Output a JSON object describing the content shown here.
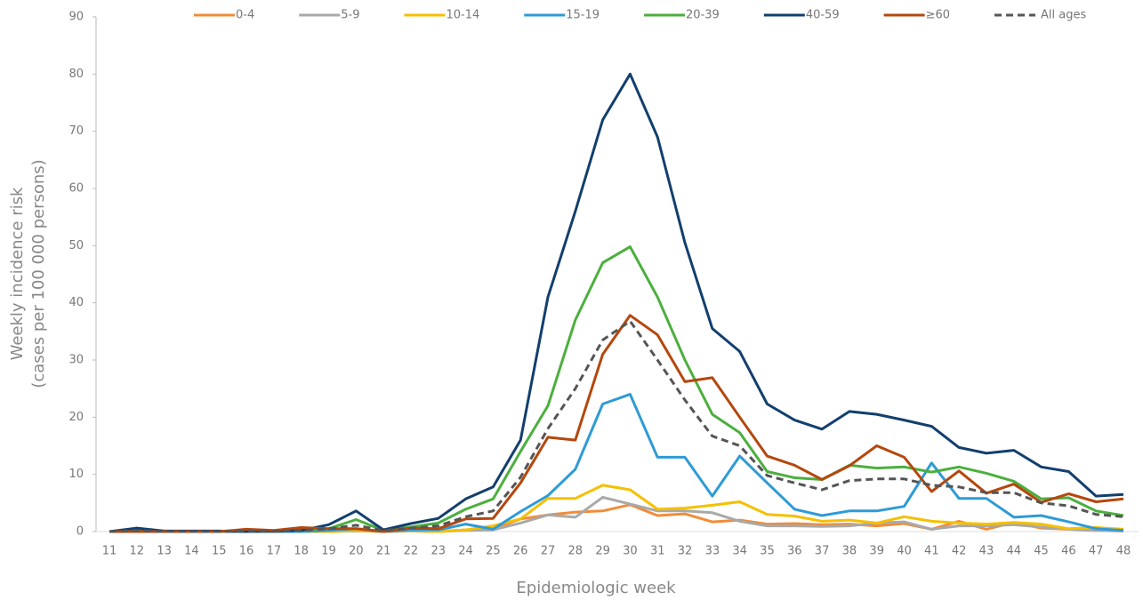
{
  "chart_data": {
    "type": "line",
    "y_title": [
      "Weekly incidence risk",
      "(cases per 100 000 persons)"
    ],
    "x_title": "Epidemiologic week",
    "categories": [
      "11",
      "12",
      "13",
      "14",
      "15",
      "16",
      "17",
      "18",
      "19",
      "20",
      "21",
      "22",
      "23",
      "24",
      "25",
      "26",
      "27",
      "28",
      "29",
      "30",
      "31",
      "32",
      "33",
      "34",
      "35",
      "36",
      "37",
      "38",
      "39",
      "40",
      "41",
      "42",
      "43",
      "44",
      "45",
      "46",
      "47",
      "48"
    ],
    "ylim": [
      0,
      90
    ],
    "yticks": [
      0,
      10,
      20,
      30,
      40,
      50,
      60,
      70,
      80,
      90
    ],
    "series": [
      {
        "name": "0-4",
        "color": "#f28c38",
        "style": "solid",
        "values": [
          0,
          0,
          0,
          0,
          0,
          0,
          0,
          0,
          0,
          0.2,
          0,
          0.1,
          0,
          0.3,
          0.5,
          2.2,
          2.9,
          3.4,
          3.6,
          4.7,
          2.8,
          3.1,
          1.7,
          2,
          1.3,
          1.4,
          1.2,
          1.3,
          1,
          1.4,
          0.4,
          1.8,
          0.4,
          1.6,
          0.6,
          0.4,
          0.2,
          0.1
        ]
      },
      {
        "name": "5-9",
        "color": "#a9a9a9",
        "style": "solid",
        "values": [
          0,
          0,
          0,
          0,
          0,
          0,
          0,
          0,
          0,
          0.1,
          0,
          0.1,
          0,
          0.2,
          0.3,
          1.5,
          2.9,
          2.5,
          6,
          4.8,
          3.6,
          3.6,
          3.3,
          1.8,
          1,
          1,
          0.9,
          1,
          1.5,
          1.7,
          0.4,
          1,
          1,
          1.2,
          0.8,
          0.4,
          0.2,
          0.1
        ]
      },
      {
        "name": "10-14",
        "color": "#f5c000",
        "style": "solid",
        "values": [
          0,
          0,
          0,
          0,
          0,
          0,
          0,
          0,
          0,
          0.2,
          0,
          0.2,
          0,
          0.3,
          1,
          2.2,
          5.8,
          5.8,
          8.1,
          7.3,
          3.9,
          4.1,
          4.6,
          5.2,
          3,
          2.7,
          1.8,
          2,
          1.5,
          2.6,
          1.8,
          1.5,
          1.3,
          1.6,
          1.3,
          0.5,
          0.7,
          0.4
        ]
      },
      {
        "name": "15-19",
        "color": "#2e9bd6",
        "style": "solid",
        "values": [
          0,
          0,
          0,
          0,
          0,
          0,
          0,
          0,
          0.2,
          0.5,
          0,
          0.3,
          0.3,
          1.3,
          0.4,
          3.5,
          6.3,
          10.9,
          22.3,
          24,
          13,
          13,
          6.2,
          13.2,
          8.5,
          3.9,
          2.8,
          3.6,
          3.6,
          4.4,
          12,
          5.8,
          5.8,
          2.5,
          2.8,
          1.7,
          0.5,
          0.2
        ]
      },
      {
        "name": "20-39",
        "color": "#4caf3e",
        "style": "solid",
        "values": [
          0,
          0.2,
          0,
          0,
          0,
          0.2,
          0,
          0.3,
          0.5,
          2.1,
          0.2,
          0.8,
          1.5,
          3.9,
          5.7,
          14,
          22,
          37,
          47,
          49.8,
          41,
          30,
          20.5,
          17.3,
          10.5,
          9.4,
          9.1,
          11.6,
          11.1,
          11.3,
          10.4,
          11.3,
          10.2,
          8.8,
          5.7,
          5.9,
          3.6,
          2.8
        ]
      },
      {
        "name": "40-59",
        "color": "#123f6e",
        "style": "solid",
        "values": [
          0,
          0.6,
          0.1,
          0.1,
          0.1,
          0,
          0.1,
          0.2,
          1.2,
          3.6,
          0.3,
          1.4,
          2.3,
          5.7,
          7.8,
          16,
          41,
          56,
          72,
          80,
          69,
          50.5,
          35.5,
          31.5,
          22.3,
          19.5,
          17.9,
          21,
          20.5,
          19.5,
          18.4,
          14.7,
          13.7,
          14.2,
          11.3,
          10.5,
          6.2,
          6.5
        ]
      },
      {
        "name": "≥60",
        "color": "#b5470d",
        "style": "solid",
        "values": [
          0,
          0,
          0,
          0,
          0,
          0.4,
          0.2,
          0.7,
          0.5,
          0.5,
          0,
          0.6,
          0.5,
          2.2,
          2.3,
          8.5,
          16.5,
          16,
          31,
          37.8,
          34.4,
          26.2,
          26.9,
          20,
          13.2,
          11.6,
          9.1,
          11.5,
          15,
          13,
          7,
          10.6,
          6.7,
          8.3,
          5.1,
          6.6,
          5.2,
          5.7
        ]
      },
      {
        "name": "All ages",
        "color": "#555555",
        "style": "dashed",
        "values": [
          0,
          0.2,
          0,
          0,
          0,
          0.1,
          0,
          0.2,
          0.5,
          1.1,
          0.2,
          0.6,
          1,
          2.6,
          3.6,
          9.5,
          18,
          25,
          33.5,
          36.8,
          30,
          23,
          16.7,
          15,
          9.8,
          8.5,
          7.3,
          8.9,
          9.2,
          9.2,
          8.1,
          7.8,
          6.8,
          6.8,
          5,
          4.5,
          3,
          2.6
        ]
      }
    ]
  }
}
